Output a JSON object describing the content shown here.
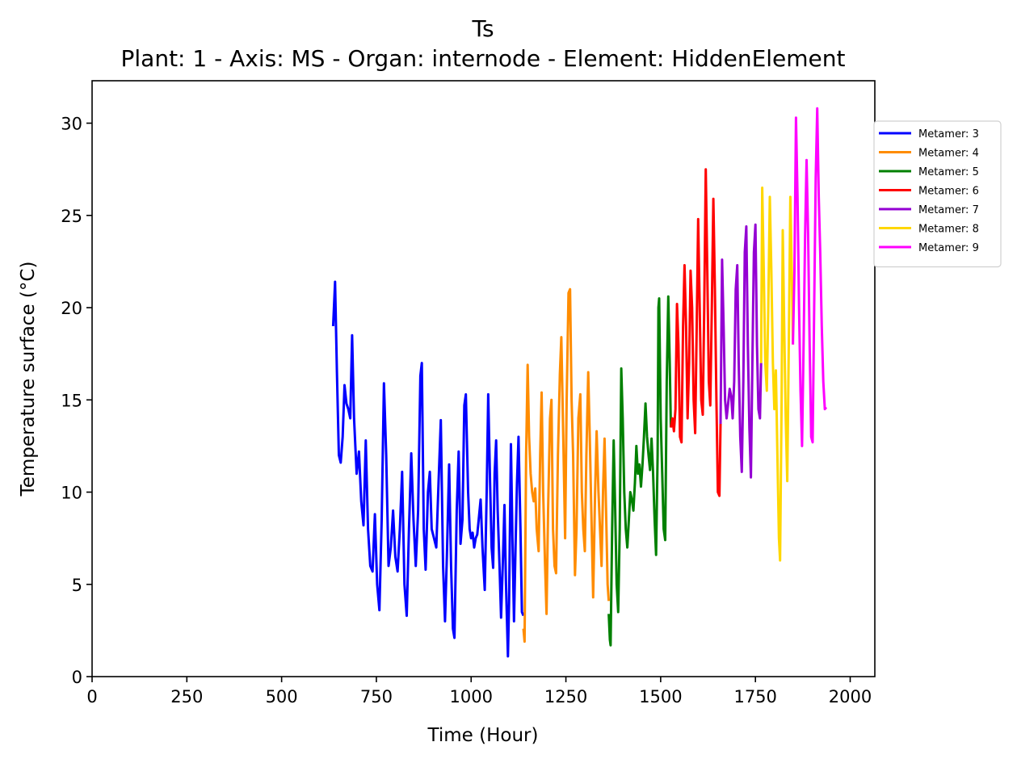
{
  "chart_data": {
    "type": "line",
    "title": "Ts",
    "subtitle": "Plant: 1 - Axis: MS - Organ: internode - Element: HiddenElement",
    "xlabel": "Time (Hour)",
    "ylabel": "Temperature surface (°C)",
    "xlim": [
      0,
      2065
    ],
    "ylim": [
      0,
      32.3
    ],
    "xticks": [
      0,
      250,
      500,
      750,
      1000,
      1250,
      1500,
      1750,
      2000
    ],
    "yticks": [
      0,
      5,
      10,
      15,
      20,
      25,
      30
    ],
    "grid": false,
    "legend_position": "right, outside plot",
    "series": [
      {
        "name": "Metamer: 3",
        "color": "#0000ff",
        "points": [
          [
            636,
            19.0
          ],
          [
            641,
            21.4
          ],
          [
            646,
            16.5
          ],
          [
            651,
            12.0
          ],
          [
            656,
            11.6
          ],
          [
            661,
            13.0
          ],
          [
            666,
            15.8
          ],
          [
            671,
            14.8
          ],
          [
            676,
            14.5
          ],
          [
            681,
            14.0
          ],
          [
            686,
            18.5
          ],
          [
            691,
            14.0
          ],
          [
            698,
            11.0
          ],
          [
            704,
            12.2
          ],
          [
            710,
            9.5
          ],
          [
            716,
            8.2
          ],
          [
            722,
            12.8
          ],
          [
            728,
            8.0
          ],
          [
            734,
            6.0
          ],
          [
            740,
            5.7
          ],
          [
            746,
            8.8
          ],
          [
            752,
            5.0
          ],
          [
            758,
            3.6
          ],
          [
            764,
            8.5
          ],
          [
            770,
            15.9
          ],
          [
            776,
            12.0
          ],
          [
            782,
            6.0
          ],
          [
            788,
            7.0
          ],
          [
            794,
            9.0
          ],
          [
            800,
            6.5
          ],
          [
            806,
            5.7
          ],
          [
            812,
            8.0
          ],
          [
            818,
            11.1
          ],
          [
            824,
            5.0
          ],
          [
            830,
            3.3
          ],
          [
            836,
            8.0
          ],
          [
            842,
            12.1
          ],
          [
            848,
            8.5
          ],
          [
            854,
            6.0
          ],
          [
            860,
            9.0
          ],
          [
            866,
            16.3
          ],
          [
            870,
            17.0
          ],
          [
            875,
            8.0
          ],
          [
            880,
            5.8
          ],
          [
            886,
            10.0
          ],
          [
            891,
            11.1
          ],
          [
            896,
            8.0
          ],
          [
            902,
            7.5
          ],
          [
            908,
            7.0
          ],
          [
            914,
            10.5
          ],
          [
            920,
            13.9
          ],
          [
            926,
            6.0
          ],
          [
            931,
            3.0
          ],
          [
            936,
            6.5
          ],
          [
            942,
            11.5
          ],
          [
            947,
            6.0
          ],
          [
            952,
            2.6
          ],
          [
            956,
            2.1
          ],
          [
            962,
            9.0
          ],
          [
            967,
            12.2
          ],
          [
            972,
            7.2
          ],
          [
            977,
            8.5
          ],
          [
            982,
            14.7
          ],
          [
            986,
            15.3
          ],
          [
            992,
            10.0
          ],
          [
            996,
            8.0
          ],
          [
            1000,
            7.5
          ],
          [
            1004,
            7.8
          ],
          [
            1008,
            7.0
          ],
          [
            1012,
            7.5
          ],
          [
            1016,
            7.7
          ],
          [
            1020,
            8.5
          ],
          [
            1025,
            9.6
          ],
          [
            1030,
            7.0
          ],
          [
            1036,
            4.7
          ],
          [
            1041,
            10.0
          ],
          [
            1045,
            15.3
          ],
          [
            1050,
            10.5
          ],
          [
            1054,
            7.0
          ],
          [
            1058,
            5.9
          ],
          [
            1062,
            11.0
          ],
          [
            1066,
            12.8
          ],
          [
            1070,
            9.0
          ],
          [
            1075,
            6.0
          ],
          [
            1079,
            3.2
          ],
          [
            1084,
            6.5
          ],
          [
            1088,
            9.3
          ],
          [
            1092,
            5.0
          ],
          [
            1097,
            1.1
          ],
          [
            1100,
            4.0
          ],
          [
            1105,
            12.6
          ],
          [
            1109,
            7.5
          ],
          [
            1113,
            3.0
          ],
          [
            1117,
            7.0
          ],
          [
            1121,
            10.5
          ],
          [
            1125,
            13.0
          ],
          [
            1130,
            8.0
          ],
          [
            1134,
            3.5
          ],
          [
            1138,
            3.3
          ]
        ]
      },
      {
        "name": "Metamer: 4",
        "color": "#ff8c00",
        "points": [
          [
            1138,
            2.6
          ],
          [
            1141,
            1.9
          ],
          [
            1145,
            12.0
          ],
          [
            1149,
            16.9
          ],
          [
            1153,
            13.0
          ],
          [
            1157,
            11.0
          ],
          [
            1161,
            10.0
          ],
          [
            1165,
            9.5
          ],
          [
            1169,
            10.2
          ],
          [
            1173,
            8.0
          ],
          [
            1178,
            6.8
          ],
          [
            1182,
            12.0
          ],
          [
            1186,
            15.4
          ],
          [
            1190,
            10.0
          ],
          [
            1195,
            6.0
          ],
          [
            1199,
            3.4
          ],
          [
            1203,
            9.0
          ],
          [
            1208,
            14.0
          ],
          [
            1212,
            15.0
          ],
          [
            1216,
            8.0
          ],
          [
            1220,
            6.0
          ],
          [
            1224,
            5.6
          ],
          [
            1229,
            12.0
          ],
          [
            1234,
            16.4
          ],
          [
            1238,
            18.4
          ],
          [
            1243,
            13.0
          ],
          [
            1248,
            7.5
          ],
          [
            1252,
            15.0
          ],
          [
            1257,
            20.8
          ],
          [
            1261,
            21.0
          ],
          [
            1265,
            15.0
          ],
          [
            1269,
            12.0
          ],
          [
            1274,
            5.5
          ],
          [
            1278,
            8.0
          ],
          [
            1283,
            14.0
          ],
          [
            1288,
            15.3
          ],
          [
            1292,
            10.0
          ],
          [
            1296,
            8.0
          ],
          [
            1300,
            6.8
          ],
          [
            1304,
            12.0
          ],
          [
            1309,
            16.5
          ],
          [
            1313,
            13.0
          ],
          [
            1318,
            8.0
          ],
          [
            1322,
            4.3
          ],
          [
            1327,
            10.0
          ],
          [
            1331,
            13.3
          ],
          [
            1336,
            10.0
          ],
          [
            1340,
            8.0
          ],
          [
            1344,
            6.0
          ],
          [
            1348,
            10.0
          ],
          [
            1352,
            12.9
          ],
          [
            1356,
            9.0
          ],
          [
            1360,
            5.0
          ],
          [
            1363,
            4.1
          ]
        ]
      },
      {
        "name": "Metamer: 5",
        "color": "#008000",
        "points": [
          [
            1363,
            3.4
          ],
          [
            1366,
            2.0
          ],
          [
            1368,
            1.7
          ],
          [
            1372,
            8.0
          ],
          [
            1376,
            12.8
          ],
          [
            1380,
            9.0
          ],
          [
            1384,
            5.0
          ],
          [
            1388,
            3.5
          ],
          [
            1392,
            8.0
          ],
          [
            1396,
            16.7
          ],
          [
            1400,
            14.0
          ],
          [
            1404,
            10.0
          ],
          [
            1408,
            8.0
          ],
          [
            1412,
            7.0
          ],
          [
            1416,
            8.5
          ],
          [
            1420,
            10.0
          ],
          [
            1424,
            9.6
          ],
          [
            1428,
            9.0
          ],
          [
            1432,
            10.5
          ],
          [
            1436,
            12.5
          ],
          [
            1440,
            11.0
          ],
          [
            1444,
            11.5
          ],
          [
            1448,
            10.3
          ],
          [
            1452,
            11.5
          ],
          [
            1456,
            13.0
          ],
          [
            1460,
            14.8
          ],
          [
            1464,
            13.0
          ],
          [
            1468,
            12.0
          ],
          [
            1472,
            11.2
          ],
          [
            1476,
            12.9
          ],
          [
            1480,
            11.0
          ],
          [
            1484,
            8.5
          ],
          [
            1488,
            6.6
          ],
          [
            1492,
            12.0
          ],
          [
            1494,
            20.0
          ],
          [
            1496,
            20.5
          ],
          [
            1500,
            14.0
          ],
          [
            1504,
            11.0
          ],
          [
            1508,
            8.0
          ],
          [
            1512,
            7.4
          ],
          [
            1516,
            16.0
          ],
          [
            1520,
            20.6
          ],
          [
            1524,
            17.0
          ],
          [
            1527,
            13.5
          ]
        ]
      },
      {
        "name": "Metamer: 6",
        "color": "#ff0000",
        "points": [
          [
            1527,
            13.5
          ],
          [
            1531,
            14.0
          ],
          [
            1535,
            13.3
          ],
          [
            1539,
            14.5
          ],
          [
            1543,
            20.2
          ],
          [
            1547,
            18.0
          ],
          [
            1551,
            13.0
          ],
          [
            1555,
            12.7
          ],
          [
            1559,
            19.0
          ],
          [
            1563,
            22.3
          ],
          [
            1567,
            19.0
          ],
          [
            1571,
            14.0
          ],
          [
            1575,
            17.0
          ],
          [
            1579,
            22.0
          ],
          [
            1583,
            20.0
          ],
          [
            1587,
            15.0
          ],
          [
            1591,
            13.2
          ],
          [
            1595,
            19.0
          ],
          [
            1599,
            24.8
          ],
          [
            1603,
            20.0
          ],
          [
            1607,
            15.0
          ],
          [
            1611,
            14.2
          ],
          [
            1615,
            20.0
          ],
          [
            1619,
            27.5
          ],
          [
            1623,
            22.0
          ],
          [
            1627,
            16.0
          ],
          [
            1631,
            14.7
          ],
          [
            1635,
            20.0
          ],
          [
            1639,
            25.9
          ],
          [
            1643,
            21.0
          ],
          [
            1647,
            15.0
          ],
          [
            1651,
            10.0
          ],
          [
            1655,
            9.8
          ],
          [
            1658,
            13.7
          ]
        ]
      },
      {
        "name": "Metamer: 7",
        "color": "#9400d3",
        "points": [
          [
            1658,
            13.7
          ],
          [
            1662,
            22.6
          ],
          [
            1666,
            19.0
          ],
          [
            1670,
            15.0
          ],
          [
            1674,
            14.0
          ],
          [
            1678,
            14.8
          ],
          [
            1682,
            15.6
          ],
          [
            1686,
            15.2
          ],
          [
            1690,
            14.0
          ],
          [
            1694,
            16.0
          ],
          [
            1698,
            21.0
          ],
          [
            1702,
            22.3
          ],
          [
            1706,
            17.0
          ],
          [
            1710,
            13.0
          ],
          [
            1714,
            11.1
          ],
          [
            1718,
            16.0
          ],
          [
            1722,
            23.0
          ],
          [
            1726,
            24.4
          ],
          [
            1730,
            18.0
          ],
          [
            1734,
            13.5
          ],
          [
            1738,
            10.8
          ],
          [
            1742,
            17.0
          ],
          [
            1746,
            23.0
          ],
          [
            1750,
            24.5
          ],
          [
            1754,
            18.0
          ],
          [
            1758,
            14.5
          ],
          [
            1762,
            14.0
          ],
          [
            1765,
            17.0
          ]
        ]
      },
      {
        "name": "Metamer: 8",
        "color": "#ffd700",
        "points": [
          [
            1765,
            17.0
          ],
          [
            1768,
            26.5
          ],
          [
            1772,
            22.0
          ],
          [
            1776,
            17.0
          ],
          [
            1780,
            15.5
          ],
          [
            1784,
            20.0
          ],
          [
            1788,
            26.0
          ],
          [
            1792,
            22.0
          ],
          [
            1796,
            17.0
          ],
          [
            1800,
            14.5
          ],
          [
            1804,
            16.6
          ],
          [
            1808,
            12.0
          ],
          [
            1812,
            7.5
          ],
          [
            1815,
            6.3
          ],
          [
            1819,
            15.0
          ],
          [
            1822,
            24.2
          ],
          [
            1826,
            19.0
          ],
          [
            1830,
            14.0
          ],
          [
            1834,
            10.6
          ],
          [
            1838,
            18.0
          ],
          [
            1842,
            26.0
          ],
          [
            1846,
            22.0
          ],
          [
            1849,
            18.0
          ]
        ]
      },
      {
        "name": "Metamer: 9",
        "color": "#ff00ff",
        "points": [
          [
            1849,
            18.0
          ],
          [
            1853,
            22.0
          ],
          [
            1857,
            30.3
          ],
          [
            1861,
            26.0
          ],
          [
            1865,
            20.0
          ],
          [
            1869,
            15.5
          ],
          [
            1873,
            12.5
          ],
          [
            1877,
            18.0
          ],
          [
            1881,
            24.0
          ],
          [
            1885,
            28.0
          ],
          [
            1889,
            24.0
          ],
          [
            1893,
            18.0
          ],
          [
            1897,
            13.0
          ],
          [
            1901,
            12.7
          ],
          [
            1905,
            20.0
          ],
          [
            1909,
            27.0
          ],
          [
            1913,
            30.8
          ],
          [
            1917,
            26.0
          ],
          [
            1921,
            23.0
          ],
          [
            1925,
            19.0
          ],
          [
            1929,
            16.0
          ],
          [
            1933,
            14.5
          ],
          [
            1937,
            14.6
          ]
        ]
      }
    ]
  }
}
